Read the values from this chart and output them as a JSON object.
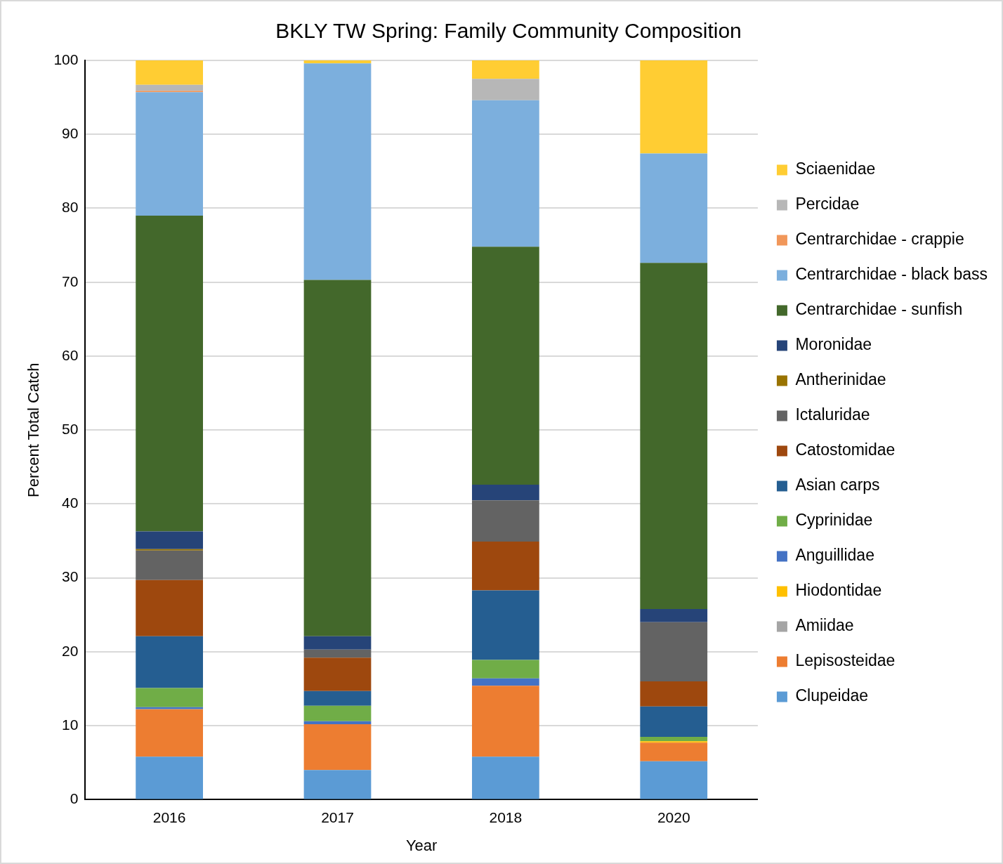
{
  "chart_data": {
    "type": "bar",
    "title": "BKLY TW Spring: Family Community Composition",
    "xlabel": "Year",
    "ylabel": "Percent Total Catch",
    "categories": [
      "2016",
      "2017",
      "2018",
      "2020"
    ],
    "stacked": true,
    "ylim": [
      0,
      100
    ],
    "yticks": [
      0,
      10,
      20,
      30,
      40,
      50,
      60,
      70,
      80,
      90,
      100
    ],
    "grid": "y",
    "legend": "right",
    "series": [
      {
        "name": "Clupeidae",
        "color": "#5b9bd5",
        "values": [
          5.8,
          4.0,
          5.8,
          5.2
        ]
      },
      {
        "name": "Lepisosteidae",
        "color": "#ed7d31",
        "values": [
          6.4,
          6.2,
          9.6,
          2.5
        ]
      },
      {
        "name": "Amiidae",
        "color": "#a5a5a5",
        "values": [
          0.1,
          0,
          0,
          0
        ]
      },
      {
        "name": "Hiodontidae",
        "color": "#ffc000",
        "values": [
          0,
          0,
          0,
          0.2
        ]
      },
      {
        "name": "Anguillidae",
        "color": "#4472c4",
        "values": [
          0.2,
          0.4,
          1.0,
          0
        ]
      },
      {
        "name": "Cyprinidae",
        "color": "#70ad47",
        "values": [
          2.6,
          2.1,
          2.5,
          0.6
        ]
      },
      {
        "name": "Asian carps",
        "color": "#255e91",
        "values": [
          7.0,
          2.0,
          9.4,
          4.1
        ]
      },
      {
        "name": "Catostomidae",
        "color": "#9e480e",
        "values": [
          7.6,
          4.5,
          6.6,
          3.4
        ]
      },
      {
        "name": "Ictaluridae",
        "color": "#636363",
        "values": [
          4.0,
          1.1,
          5.6,
          8.0
        ]
      },
      {
        "name": "Antherinidae",
        "color": "#997300",
        "values": [
          0.2,
          0,
          0,
          0
        ]
      },
      {
        "name": "Moronidae",
        "color": "#264478",
        "values": [
          2.4,
          1.8,
          2.1,
          1.8
        ]
      },
      {
        "name": "Centrarchidae - sunfish",
        "color": "#43682b",
        "values": [
          42.7,
          48.2,
          32.2,
          46.8
        ]
      },
      {
        "name": "Centrarchidae - black bass",
        "color": "#7cafdd",
        "values": [
          16.7,
          29.3,
          19.8,
          14.8
        ]
      },
      {
        "name": "Centrarchidae - crappie",
        "color": "#f1975a",
        "values": [
          0.2,
          0,
          0,
          0
        ]
      },
      {
        "name": "Percidae",
        "color": "#b7b7b7",
        "values": [
          0.8,
          0,
          2.9,
          0
        ]
      },
      {
        "name": "Sciaenidae",
        "color": "#ffcd33",
        "values": [
          3.3,
          0.4,
          2.5,
          12.6
        ]
      }
    ]
  }
}
